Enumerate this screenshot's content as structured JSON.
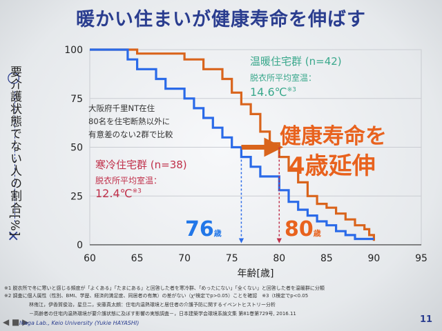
{
  "slide": {
    "title": "暖かい住まいが健康寿命を伸ばす",
    "y_axis_label": "要介護状態でない人の割合[%]",
    "y_top_marker": "○",
    "y_bottom_marker": "×",
    "note": [
      "大阪府千里NT在住",
      "80名を住宅断熱以外に",
      "有意差のない2群で比較"
    ],
    "warm_group": {
      "label": "温暖住宅群 (n=42)",
      "sub": "脱衣所平均室温：",
      "temp": "14.6℃",
      "temp_mark": "※3"
    },
    "cold_group": {
      "label": "寒冷住宅群 (n=38)",
      "sub": "脱衣所平均室温：",
      "temp": "12.4℃",
      "temp_mark": "※3"
    },
    "highlight_line1": "健康寿命を",
    "highlight_line2": "4歳延伸",
    "cold_age": {
      "value": "76",
      "unit": "歳"
    },
    "warm_age": {
      "value": "80",
      "unit": "歳"
    },
    "footnotes": [
      "※1 脱衣所で冬に寒いと感じる頻度が「よくある」「たまにある」と回答した者を寒冷群、「めったにない」「全くない」と回答した者を温暖群に分類",
      "※2 調査に個人属性（性別、BMI、学歴、経済的満足度、同居者の有無）の差がない（χ²検定でp>0.05）ことを確認　※3（t検定でp<0.05",
      "林侑江，伊香賀俊治，星旦二，安藤真太朗：住宅内温熱環境と居住者の介護予防に関するイベントヒストリー分析",
      "－高齢者の住宅内温熱環境が要介護状態に及ぼす影響の実態調査－，日本建築学会環境系論文集 第81巻第729号, 2016.11"
    ],
    "footer_lab": "Ikaga Lab., Keio University (Yukie HAYASHI)",
    "page_number": "11",
    "nav_icons": "◀ ■ ▶"
  },
  "chart_data": {
    "type": "line",
    "xlabel": "年齢[歳]",
    "ylabel": "要介護状態でない人の割合[%]",
    "xlim": [
      60,
      95
    ],
    "ylim": [
      0,
      100
    ],
    "x_ticks": [
      60,
      65,
      70,
      75,
      80,
      85,
      90,
      95
    ],
    "y_ticks": [
      0,
      25,
      50,
      75,
      100
    ],
    "grid": true,
    "step": true,
    "series": [
      {
        "name": "温暖住宅群 (n=42)",
        "color": "#d9641c",
        "points": [
          [
            60,
            100
          ],
          [
            65,
            100
          ],
          [
            65,
            98
          ],
          [
            70,
            98
          ],
          [
            70,
            95
          ],
          [
            72,
            95
          ],
          [
            72,
            90
          ],
          [
            74,
            90
          ],
          [
            74,
            85
          ],
          [
            75,
            85
          ],
          [
            75,
            78
          ],
          [
            76,
            78
          ],
          [
            76,
            72
          ],
          [
            77,
            72
          ],
          [
            77,
            67
          ],
          [
            78,
            67
          ],
          [
            78,
            58
          ],
          [
            79,
            58
          ],
          [
            79,
            52
          ],
          [
            80,
            52
          ],
          [
            80,
            45
          ],
          [
            81,
            45
          ],
          [
            81,
            38
          ],
          [
            82,
            38
          ],
          [
            82,
            32
          ],
          [
            83,
            32
          ],
          [
            83,
            25
          ],
          [
            84,
            25
          ],
          [
            84,
            21
          ],
          [
            85,
            21
          ],
          [
            85,
            19
          ],
          [
            86,
            19
          ],
          [
            86,
            16
          ],
          [
            87,
            16
          ],
          [
            87,
            13
          ],
          [
            88,
            13
          ],
          [
            88,
            10
          ],
          [
            89,
            10
          ],
          [
            89,
            8
          ],
          [
            89.5,
            8
          ],
          [
            89.5,
            5
          ],
          [
            90,
            5
          ],
          [
            90,
            2
          ]
        ]
      },
      {
        "name": "寒冷住宅群 (n=38)",
        "color": "#2a6ae8",
        "points": [
          [
            60,
            100
          ],
          [
            64,
            100
          ],
          [
            64,
            95
          ],
          [
            65,
            95
          ],
          [
            65,
            90
          ],
          [
            67,
            90
          ],
          [
            67,
            85
          ],
          [
            68,
            85
          ],
          [
            68,
            80
          ],
          [
            70,
            80
          ],
          [
            70,
            75
          ],
          [
            71,
            75
          ],
          [
            71,
            70
          ],
          [
            72,
            70
          ],
          [
            72,
            65
          ],
          [
            73,
            65
          ],
          [
            73,
            60
          ],
          [
            74,
            60
          ],
          [
            74,
            55
          ],
          [
            75,
            55
          ],
          [
            75,
            50
          ],
          [
            76,
            50
          ],
          [
            76,
            45
          ],
          [
            77,
            45
          ],
          [
            77,
            40
          ],
          [
            78,
            40
          ],
          [
            78,
            35
          ],
          [
            80,
            35
          ],
          [
            80,
            28
          ],
          [
            81,
            28
          ],
          [
            81,
            22
          ],
          [
            82,
            22
          ],
          [
            82,
            18
          ],
          [
            83,
            18
          ],
          [
            83,
            15
          ],
          [
            84,
            15
          ],
          [
            84,
            12
          ],
          [
            85,
            12
          ],
          [
            85,
            10
          ],
          [
            86,
            10
          ],
          [
            86,
            7
          ],
          [
            87,
            7
          ],
          [
            87,
            5
          ],
          [
            88,
            5
          ],
          [
            88,
            3
          ],
          [
            90,
            3
          ]
        ]
      }
    ],
    "annotations": [
      {
        "type": "arrow",
        "x": [
          76,
          80
        ],
        "y": 50,
        "color": "#d9641c"
      },
      {
        "type": "vline_arrow",
        "x": 76,
        "y_from": 50,
        "y_to": 0,
        "color": "#2a6ae8"
      },
      {
        "type": "vline_arrow",
        "x": 80,
        "y_from": 50,
        "y_to": 0,
        "color": "#c0304a"
      }
    ]
  }
}
